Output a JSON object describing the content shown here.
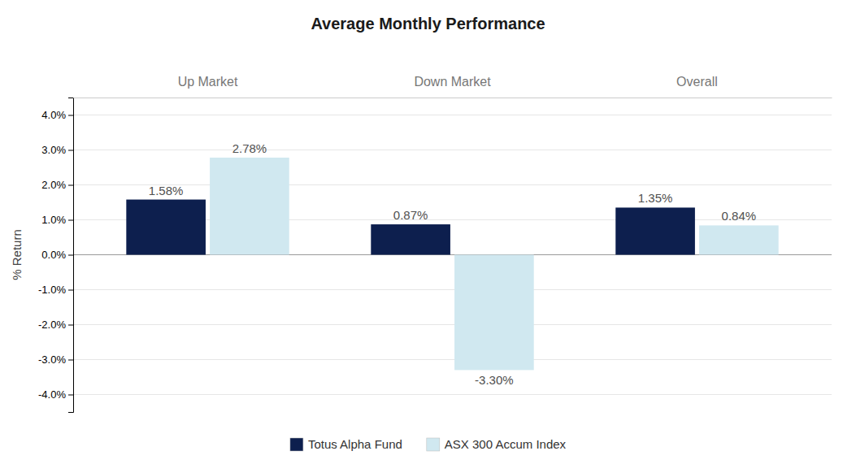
{
  "chart_data": {
    "type": "bar",
    "title": "Average Monthly Performance",
    "categories": [
      "Up Market",
      "Down Market",
      "Overall"
    ],
    "series": [
      {
        "name": "Totus Alpha Fund",
        "color": "#0d1f4e",
        "values": [
          1.58,
          0.87,
          1.35
        ],
        "value_labels": [
          "1.58%",
          "0.87%",
          "1.35%"
        ]
      },
      {
        "name": "ASX 300 Accum Index",
        "color": "#d0e8f0",
        "values": [
          2.78,
          -3.3,
          0.84
        ],
        "value_labels": [
          "2.78%",
          "-3.30%",
          "0.84%"
        ]
      }
    ],
    "ylabel": "% Return",
    "ylim": [
      -4.5,
      4.5
    ],
    "yticks": [
      {
        "value": -4.0,
        "label": "-4.0%"
      },
      {
        "value": -3.0,
        "label": "-3.0%"
      },
      {
        "value": -2.0,
        "label": "-2.0%"
      },
      {
        "value": -1.0,
        "label": "-1.0%"
      },
      {
        "value": 0.0,
        "label": "0.0%"
      },
      {
        "value": 1.0,
        "label": "1.0%"
      },
      {
        "value": 2.0,
        "label": "2.0%"
      },
      {
        "value": 3.0,
        "label": "3.0%"
      },
      {
        "value": 4.0,
        "label": "4.0%"
      }
    ],
    "grid": true,
    "legend": "bottom",
    "data_labels": true
  }
}
